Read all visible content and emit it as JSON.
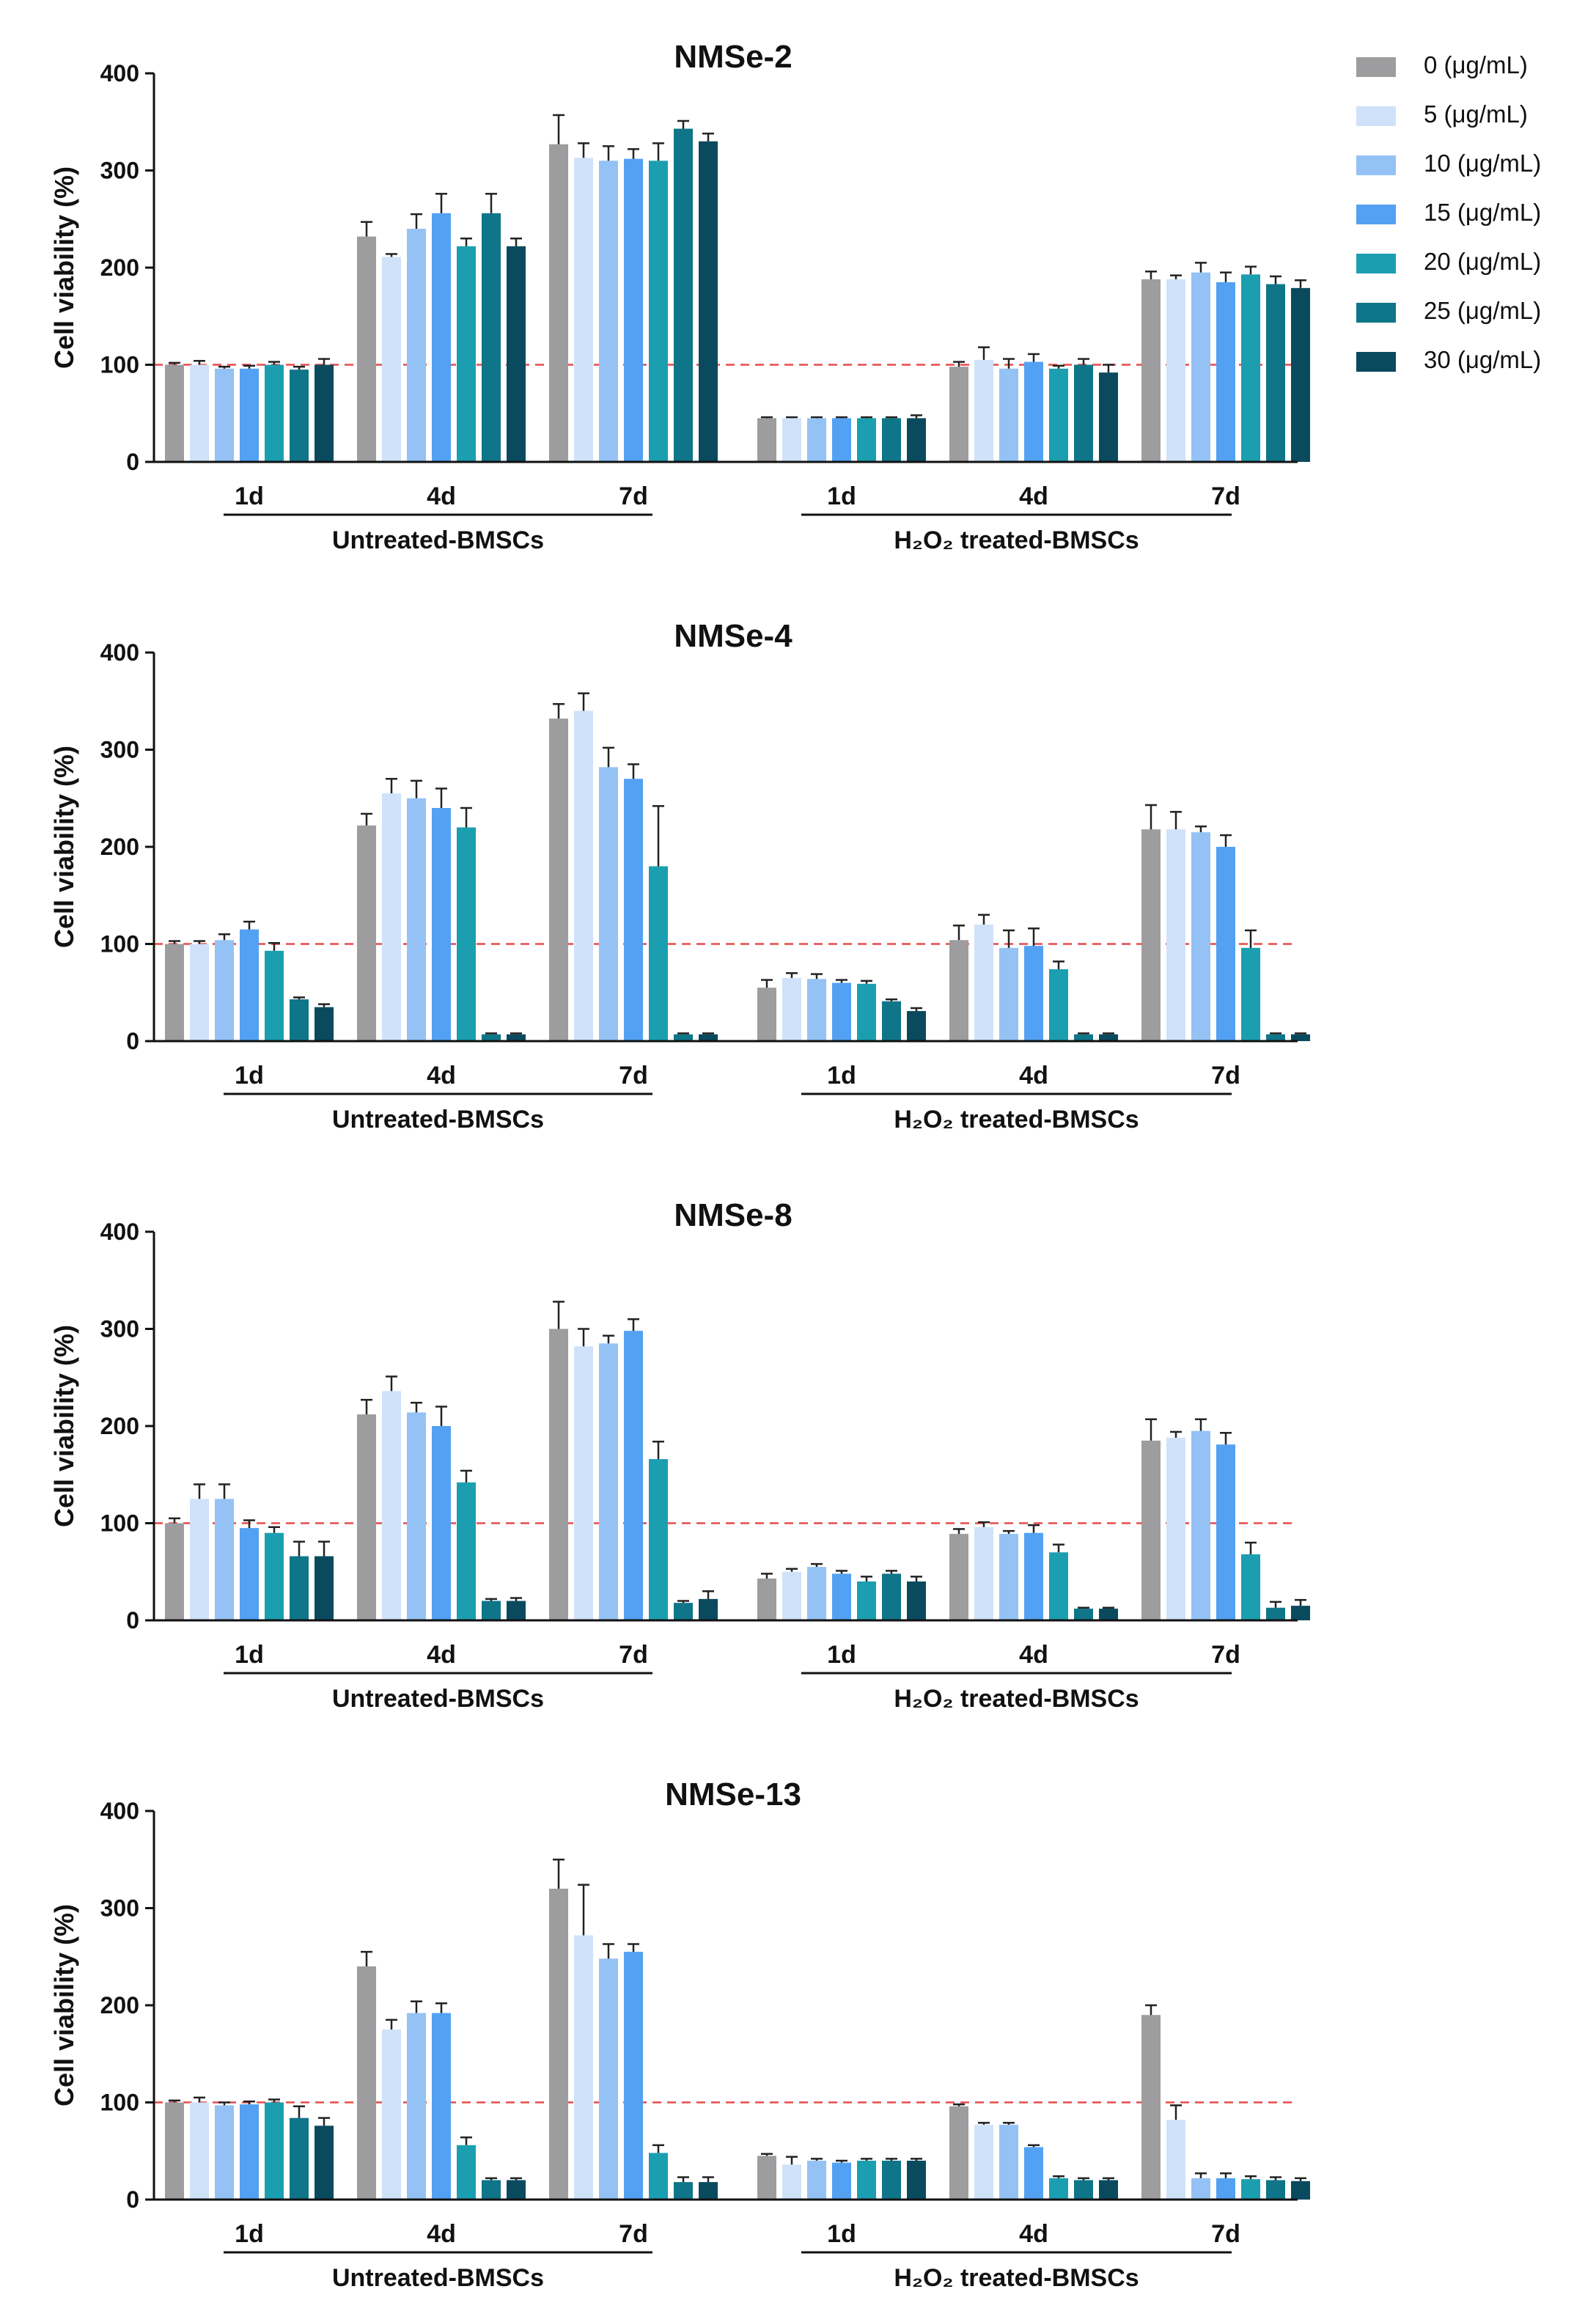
{
  "legend": {
    "items": [
      {
        "label": "0 (μg/mL)",
        "color": "#9d9d9f"
      },
      {
        "label": "5 (μg/mL)",
        "color": "#cfe2fa"
      },
      {
        "label": "10 (μg/mL)",
        "color": "#94c2f5"
      },
      {
        "label": "15 (μg/mL)",
        "color": "#53a1f2"
      },
      {
        "label": "20 (μg/mL)",
        "color": "#1b9fb0"
      },
      {
        "label": "25 (μg/mL)",
        "color": "#0f7588"
      },
      {
        "label": "30 (μg/mL)",
        "color": "#0a4a5e"
      }
    ]
  },
  "chart_data": [
    {
      "type": "bar",
      "title": "NMSe-2",
      "ylabel": "Cell viability (%)",
      "ylim": [
        0,
        400
      ],
      "yticks": [
        "0",
        "100",
        "200",
        "300",
        "400"
      ],
      "reference_line": 100,
      "categories": [
        "1d",
        "4d",
        "7d",
        "1d",
        "4d",
        "7d"
      ],
      "groups": [
        {
          "label": "Untreated-BMSCs"
        },
        {
          "label": "H₂O₂ treated-BMSCs"
        }
      ],
      "series": [
        {
          "name": "0 (μg/mL)",
          "values": [
            100,
            232,
            327,
            45,
            98,
            188
          ],
          "errors": [
            2,
            15,
            30,
            1,
            5,
            8
          ]
        },
        {
          "name": "5 (μg/mL)",
          "values": [
            100,
            211,
            313,
            45,
            105,
            188
          ],
          "errors": [
            4,
            3,
            15,
            1,
            13,
            4
          ]
        },
        {
          "name": "10 (μg/mL)",
          "values": [
            96,
            240,
            310,
            45,
            96,
            195
          ],
          "errors": [
            2,
            15,
            15,
            1,
            10,
            10
          ]
        },
        {
          "name": "15 (μg/mL)",
          "values": [
            96,
            256,
            312,
            45,
            103,
            185
          ],
          "errors": [
            3,
            20,
            10,
            1,
            8,
            10
          ]
        },
        {
          "name": "20 (μg/mL)",
          "values": [
            100,
            222,
            310,
            45,
            96,
            193
          ],
          "errors": [
            3,
            8,
            18,
            1,
            3,
            8
          ]
        },
        {
          "name": "25 (μg/mL)",
          "values": [
            95,
            256,
            343,
            45,
            100,
            183
          ],
          "errors": [
            3,
            20,
            8,
            1,
            6,
            8
          ]
        },
        {
          "name": "30 (μg/mL)",
          "values": [
            100,
            222,
            330,
            45,
            92,
            179
          ],
          "errors": [
            6,
            8,
            8,
            3,
            8,
            8
          ]
        }
      ]
    },
    {
      "type": "bar",
      "title": "NMSe-4",
      "ylabel": "Cell viability (%)",
      "ylim": [
        0,
        400
      ],
      "yticks": [
        "0",
        "100",
        "200",
        "300",
        "400"
      ],
      "reference_line": 100,
      "categories": [
        "1d",
        "4d",
        "7d",
        "1d",
        "4d",
        "7d"
      ],
      "groups": [
        {
          "label": "Untreated-BMSCs"
        },
        {
          "label": "H₂O₂ treated-BMSCs"
        }
      ],
      "series": [
        {
          "name": "0 (μg/mL)",
          "values": [
            100,
            222,
            332,
            55,
            104,
            218
          ],
          "errors": [
            3,
            12,
            15,
            8,
            15,
            25
          ]
        },
        {
          "name": "5 (μg/mL)",
          "values": [
            100,
            255,
            340,
            65,
            120,
            218
          ],
          "errors": [
            3,
            15,
            18,
            5,
            10,
            18
          ]
        },
        {
          "name": "10 (μg/mL)",
          "values": [
            104,
            250,
            282,
            64,
            96,
            215
          ],
          "errors": [
            6,
            18,
            20,
            5,
            18,
            6
          ]
        },
        {
          "name": "15 (μg/mL)",
          "values": [
            115,
            240,
            270,
            60,
            98,
            200
          ],
          "errors": [
            8,
            20,
            15,
            3,
            18,
            12
          ]
        },
        {
          "name": "20 (μg/mL)",
          "values": [
            93,
            220,
            180,
            59,
            74,
            96
          ],
          "errors": [
            8,
            20,
            62,
            3,
            8,
            18
          ]
        },
        {
          "name": "25 (μg/mL)",
          "values": [
            43,
            7,
            7,
            41,
            7,
            7
          ],
          "errors": [
            2,
            1,
            1,
            2,
            1,
            1
          ]
        },
        {
          "name": "30 (μg/mL)",
          "values": [
            35,
            7,
            7,
            31,
            7,
            7
          ],
          "errors": [
            3,
            1,
            1,
            3,
            1,
            1
          ]
        }
      ]
    },
    {
      "type": "bar",
      "title": "NMSe-8",
      "ylabel": "Cell viability (%)",
      "ylim": [
        0,
        400
      ],
      "yticks": [
        "0",
        "100",
        "200",
        "300",
        "400"
      ],
      "reference_line": 100,
      "categories": [
        "1d",
        "4d",
        "7d",
        "1d",
        "4d",
        "7d"
      ],
      "groups": [
        {
          "label": "Untreated-BMSCs"
        },
        {
          "label": "H₂O₂ treated-BMSCs"
        }
      ],
      "series": [
        {
          "name": "0 (μg/mL)",
          "values": [
            100,
            212,
            300,
            43,
            89,
            185
          ],
          "errors": [
            5,
            15,
            28,
            5,
            5,
            22
          ]
        },
        {
          "name": "5 (μg/mL)",
          "values": [
            125,
            236,
            282,
            50,
            96,
            188
          ],
          "errors": [
            15,
            15,
            18,
            3,
            5,
            6
          ]
        },
        {
          "name": "10 (μg/mL)",
          "values": [
            125,
            214,
            285,
            55,
            89,
            195
          ],
          "errors": [
            15,
            10,
            8,
            3,
            3,
            12
          ]
        },
        {
          "name": "15 (μg/mL)",
          "values": [
            95,
            200,
            298,
            48,
            90,
            181
          ],
          "errors": [
            8,
            20,
            12,
            3,
            8,
            12
          ]
        },
        {
          "name": "20 (μg/mL)",
          "values": [
            90,
            142,
            166,
            40,
            70,
            68
          ],
          "errors": [
            6,
            12,
            18,
            5,
            8,
            12
          ]
        },
        {
          "name": "25 (μg/mL)",
          "values": [
            66,
            20,
            18,
            48,
            12,
            13
          ],
          "errors": [
            15,
            2,
            2,
            3,
            1,
            6
          ]
        },
        {
          "name": "30 (μg/mL)",
          "values": [
            66,
            20,
            22,
            40,
            12,
            15
          ],
          "errors": [
            15,
            3,
            8,
            5,
            1,
            6
          ]
        }
      ]
    },
    {
      "type": "bar",
      "title": "NMSe-13",
      "ylabel": "Cell viability (%)",
      "ylim": [
        0,
        400
      ],
      "yticks": [
        "0",
        "100",
        "200",
        "300",
        "400"
      ],
      "reference_line": 100,
      "categories": [
        "1d",
        "4d",
        "7d",
        "1d",
        "4d",
        "7d"
      ],
      "groups": [
        {
          "label": "Untreated-BMSCs"
        },
        {
          "label": "H₂O₂ treated-BMSCs"
        }
      ],
      "series": [
        {
          "name": "0 (μg/mL)",
          "values": [
            100,
            240,
            320,
            45,
            96,
            190
          ],
          "errors": [
            2,
            15,
            30,
            2,
            2,
            10
          ]
        },
        {
          "name": "5 (μg/mL)",
          "values": [
            100,
            175,
            272,
            36,
            77,
            82
          ],
          "errors": [
            5,
            10,
            52,
            8,
            2,
            15
          ]
        },
        {
          "name": "10 (μg/mL)",
          "values": [
            97,
            192,
            248,
            40,
            77,
            22
          ],
          "errors": [
            3,
            12,
            15,
            2,
            2,
            5
          ]
        },
        {
          "name": "15 (μg/mL)",
          "values": [
            98,
            192,
            255,
            38,
            54,
            22
          ],
          "errors": [
            3,
            10,
            8,
            2,
            2,
            5
          ]
        },
        {
          "name": "20 (μg/mL)",
          "values": [
            100,
            56,
            48,
            40,
            22,
            21
          ],
          "errors": [
            3,
            8,
            8,
            2,
            2,
            3
          ]
        },
        {
          "name": "25 (μg/mL)",
          "values": [
            84,
            20,
            18,
            40,
            20,
            20
          ],
          "errors": [
            12,
            2,
            5,
            2,
            2,
            3
          ]
        },
        {
          "name": "30 (μg/mL)",
          "values": [
            76,
            20,
            18,
            40,
            20,
            19
          ],
          "errors": [
            8,
            2,
            5,
            2,
            2,
            3
          ]
        }
      ]
    }
  ]
}
